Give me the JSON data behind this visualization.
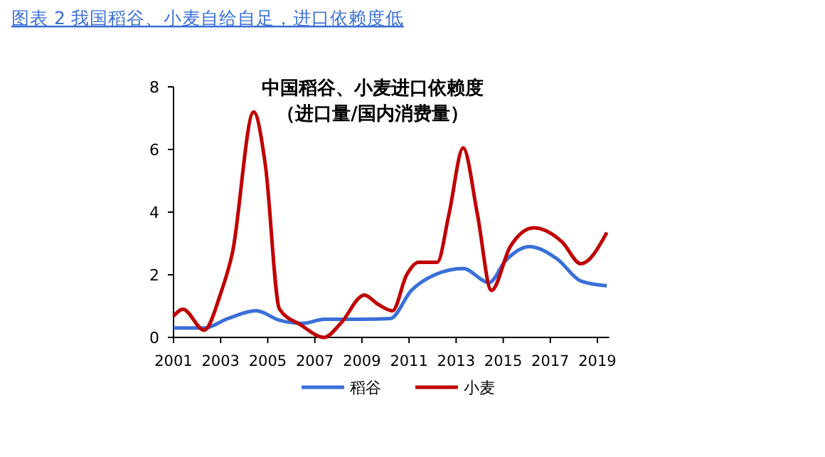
{
  "chart_data": {
    "type": "line",
    "title": "中国稻谷、小麦进口依赖度",
    "subtitle": "（进口量/国内消费量）",
    "annotations": [
      "图表 2 我国稻谷、小麦自给自足，进口依赖度低"
    ],
    "xlim": [
      2001,
      2019.5
    ],
    "xticks": [
      2001,
      2003,
      2005,
      2007,
      2009,
      2011,
      2013,
      2015,
      2017,
      2019
    ],
    "ylim": [
      0,
      8
    ],
    "yticks": [
      0,
      2,
      4,
      6,
      8
    ],
    "grid": false,
    "legend": "bottom",
    "marker": "none",
    "line_style": "solid",
    "series": [
      {
        "name": "稻谷",
        "color": "#3a6fd8",
        "x": [
          2001,
          2002.3,
          2003.3,
          2004.5,
          2005.5,
          2006.5,
          2007.4,
          2008.9,
          2010.2,
          2011.1,
          2012.1,
          2013.3,
          2014.4,
          2015.1,
          2016.1,
          2017.3,
          2018.3,
          2019.4
        ],
        "values": [
          0.3,
          0.3,
          0.6,
          0.85,
          0.55,
          0.45,
          0.58,
          0.58,
          0.6,
          1.5,
          2.0,
          2.2,
          1.75,
          2.45,
          2.9,
          2.5,
          1.8,
          1.65
        ]
      },
      {
        "name": "小麦",
        "color": "#c00000",
        "x": [
          2001,
          2001.4,
          2002.3,
          2003,
          2003.5,
          2004.4,
          2004.9,
          2005.5,
          2006.4,
          2007.4,
          2008.1,
          2009.1,
          2009.7,
          2010.3,
          2010.9,
          2011.4,
          2012.2,
          2012.7,
          2013.3,
          2013.9,
          2014.5,
          2015.3,
          2016.3,
          2017.5,
          2018.3,
          2019.4
        ],
        "values": [
          0.68,
          0.9,
          0.23,
          1.4,
          2.7,
          7.2,
          5.5,
          0.9,
          0.4,
          0.0,
          0.45,
          1.35,
          1.05,
          0.85,
          2.0,
          2.4,
          2.4,
          3.95,
          6.05,
          3.95,
          1.5,
          2.9,
          3.5,
          3.05,
          2.35,
          3.35
        ]
      }
    ]
  }
}
